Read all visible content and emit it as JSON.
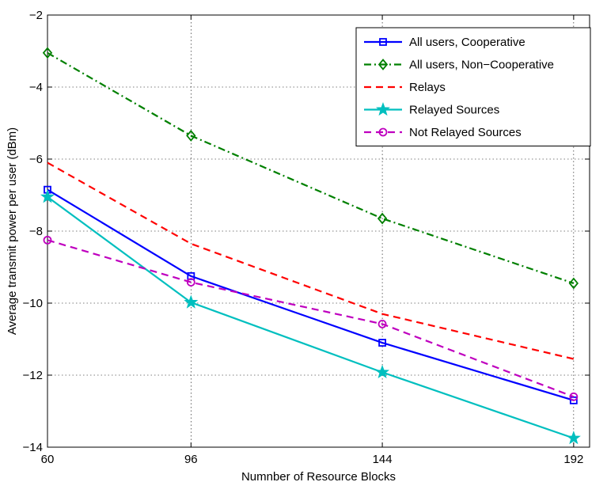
{
  "chart_data": {
    "type": "line",
    "title": "",
    "xlabel": "Numnber of Resource Blocks",
    "ylabel": "Average transmit power per user (dBm)",
    "x": [
      60,
      96,
      144,
      192
    ],
    "xtick_labels": [
      "60",
      "96",
      "144",
      "192"
    ],
    "xlim": [
      60,
      196
    ],
    "ylim": [
      -14,
      -2
    ],
    "ytick_values": [
      -14,
      -12,
      -10,
      -8,
      -6,
      -4,
      -2
    ],
    "ytick_labels": [
      "−14",
      "−12",
      "−10",
      "−8",
      "−6",
      "−4",
      "−2"
    ],
    "grid": true,
    "legend_position": "top-right",
    "series": [
      {
        "name": "All users, Cooperative",
        "color": "#0000ff",
        "line": "solid",
        "marker": "square",
        "values": [
          -6.85,
          -9.25,
          -11.1,
          -12.7
        ]
      },
      {
        "name": "All users, Non−Cooperative",
        "color": "#008000",
        "line": "dashdot",
        "marker": "diamond",
        "values": [
          -3.05,
          -5.35,
          -7.65,
          -9.45
        ]
      },
      {
        "name": "Relays",
        "color": "#ff0000",
        "line": "dashed",
        "marker": "none",
        "values": [
          -6.1,
          -8.35,
          -10.3,
          -11.55
        ]
      },
      {
        "name": "Relayed Sources",
        "color": "#00bfbf",
        "line": "solid",
        "marker": "star",
        "values": [
          -7.05,
          -9.98,
          -11.92,
          -13.75
        ]
      },
      {
        "name": "Not Relayed Sources",
        "color": "#bf00bf",
        "line": "dashed",
        "marker": "circle",
        "values": [
          -8.25,
          -9.42,
          -10.58,
          -12.6
        ]
      }
    ]
  }
}
